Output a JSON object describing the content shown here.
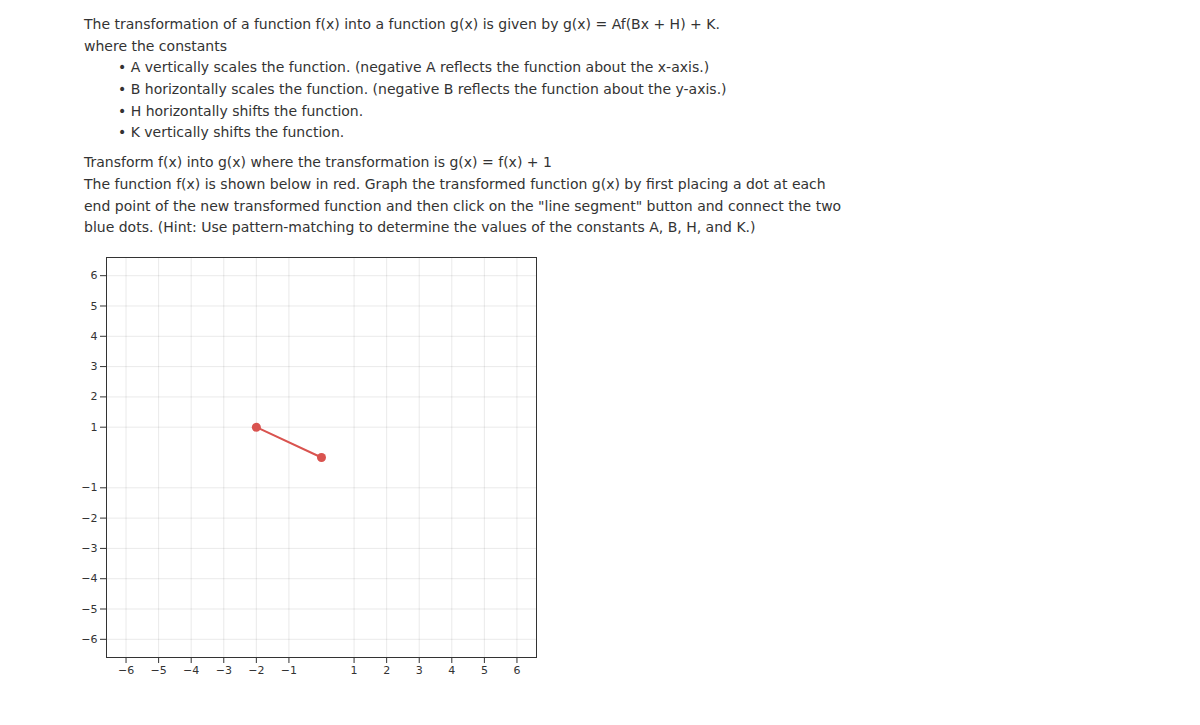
{
  "chart_data": {
    "type": "line",
    "annotations": [
      "The transformation of a function f(x) into a function g(x) is given by g(x) = Af(Bx + H) + K.",
      "where the constants",
      "• A vertically scales the function. (negative A reflects the function about the x-axis.)",
      "• B horizontally scales the function. (negative B reflects the function about the y-axis.)",
      "• H horizontally shifts the function.",
      "• K vertically shifts the function.",
      "Transform f(x) into g(x) where the transformation is g(x) = f(x) + 1",
      "The function f(x) is shown below in red. Graph the transformed function g(x) by first placing a dot at each",
      "end point of the new transformed function and then click on the \"line segment\" button and connect the two",
      "blue dots. (Hint: Use pattern-matching to determine the values of the constants A, B, H, and K.)"
    ],
    "x": [
      -2,
      0
    ],
    "values": [
      1,
      0
    ],
    "color": "#d9534f",
    "marker": "circle",
    "xlim": [
      -6.6,
      6.6
    ],
    "ylim": [
      -6.6,
      6.6
    ],
    "xticks": [
      -6,
      -5,
      -4,
      -3,
      -2,
      -1,
      1,
      2,
      3,
      4,
      5,
      6
    ],
    "yticks": [
      -6,
      -5,
      -4,
      -3,
      -2,
      -1,
      1,
      2,
      3,
      4,
      5,
      6
    ],
    "grid": true
  }
}
